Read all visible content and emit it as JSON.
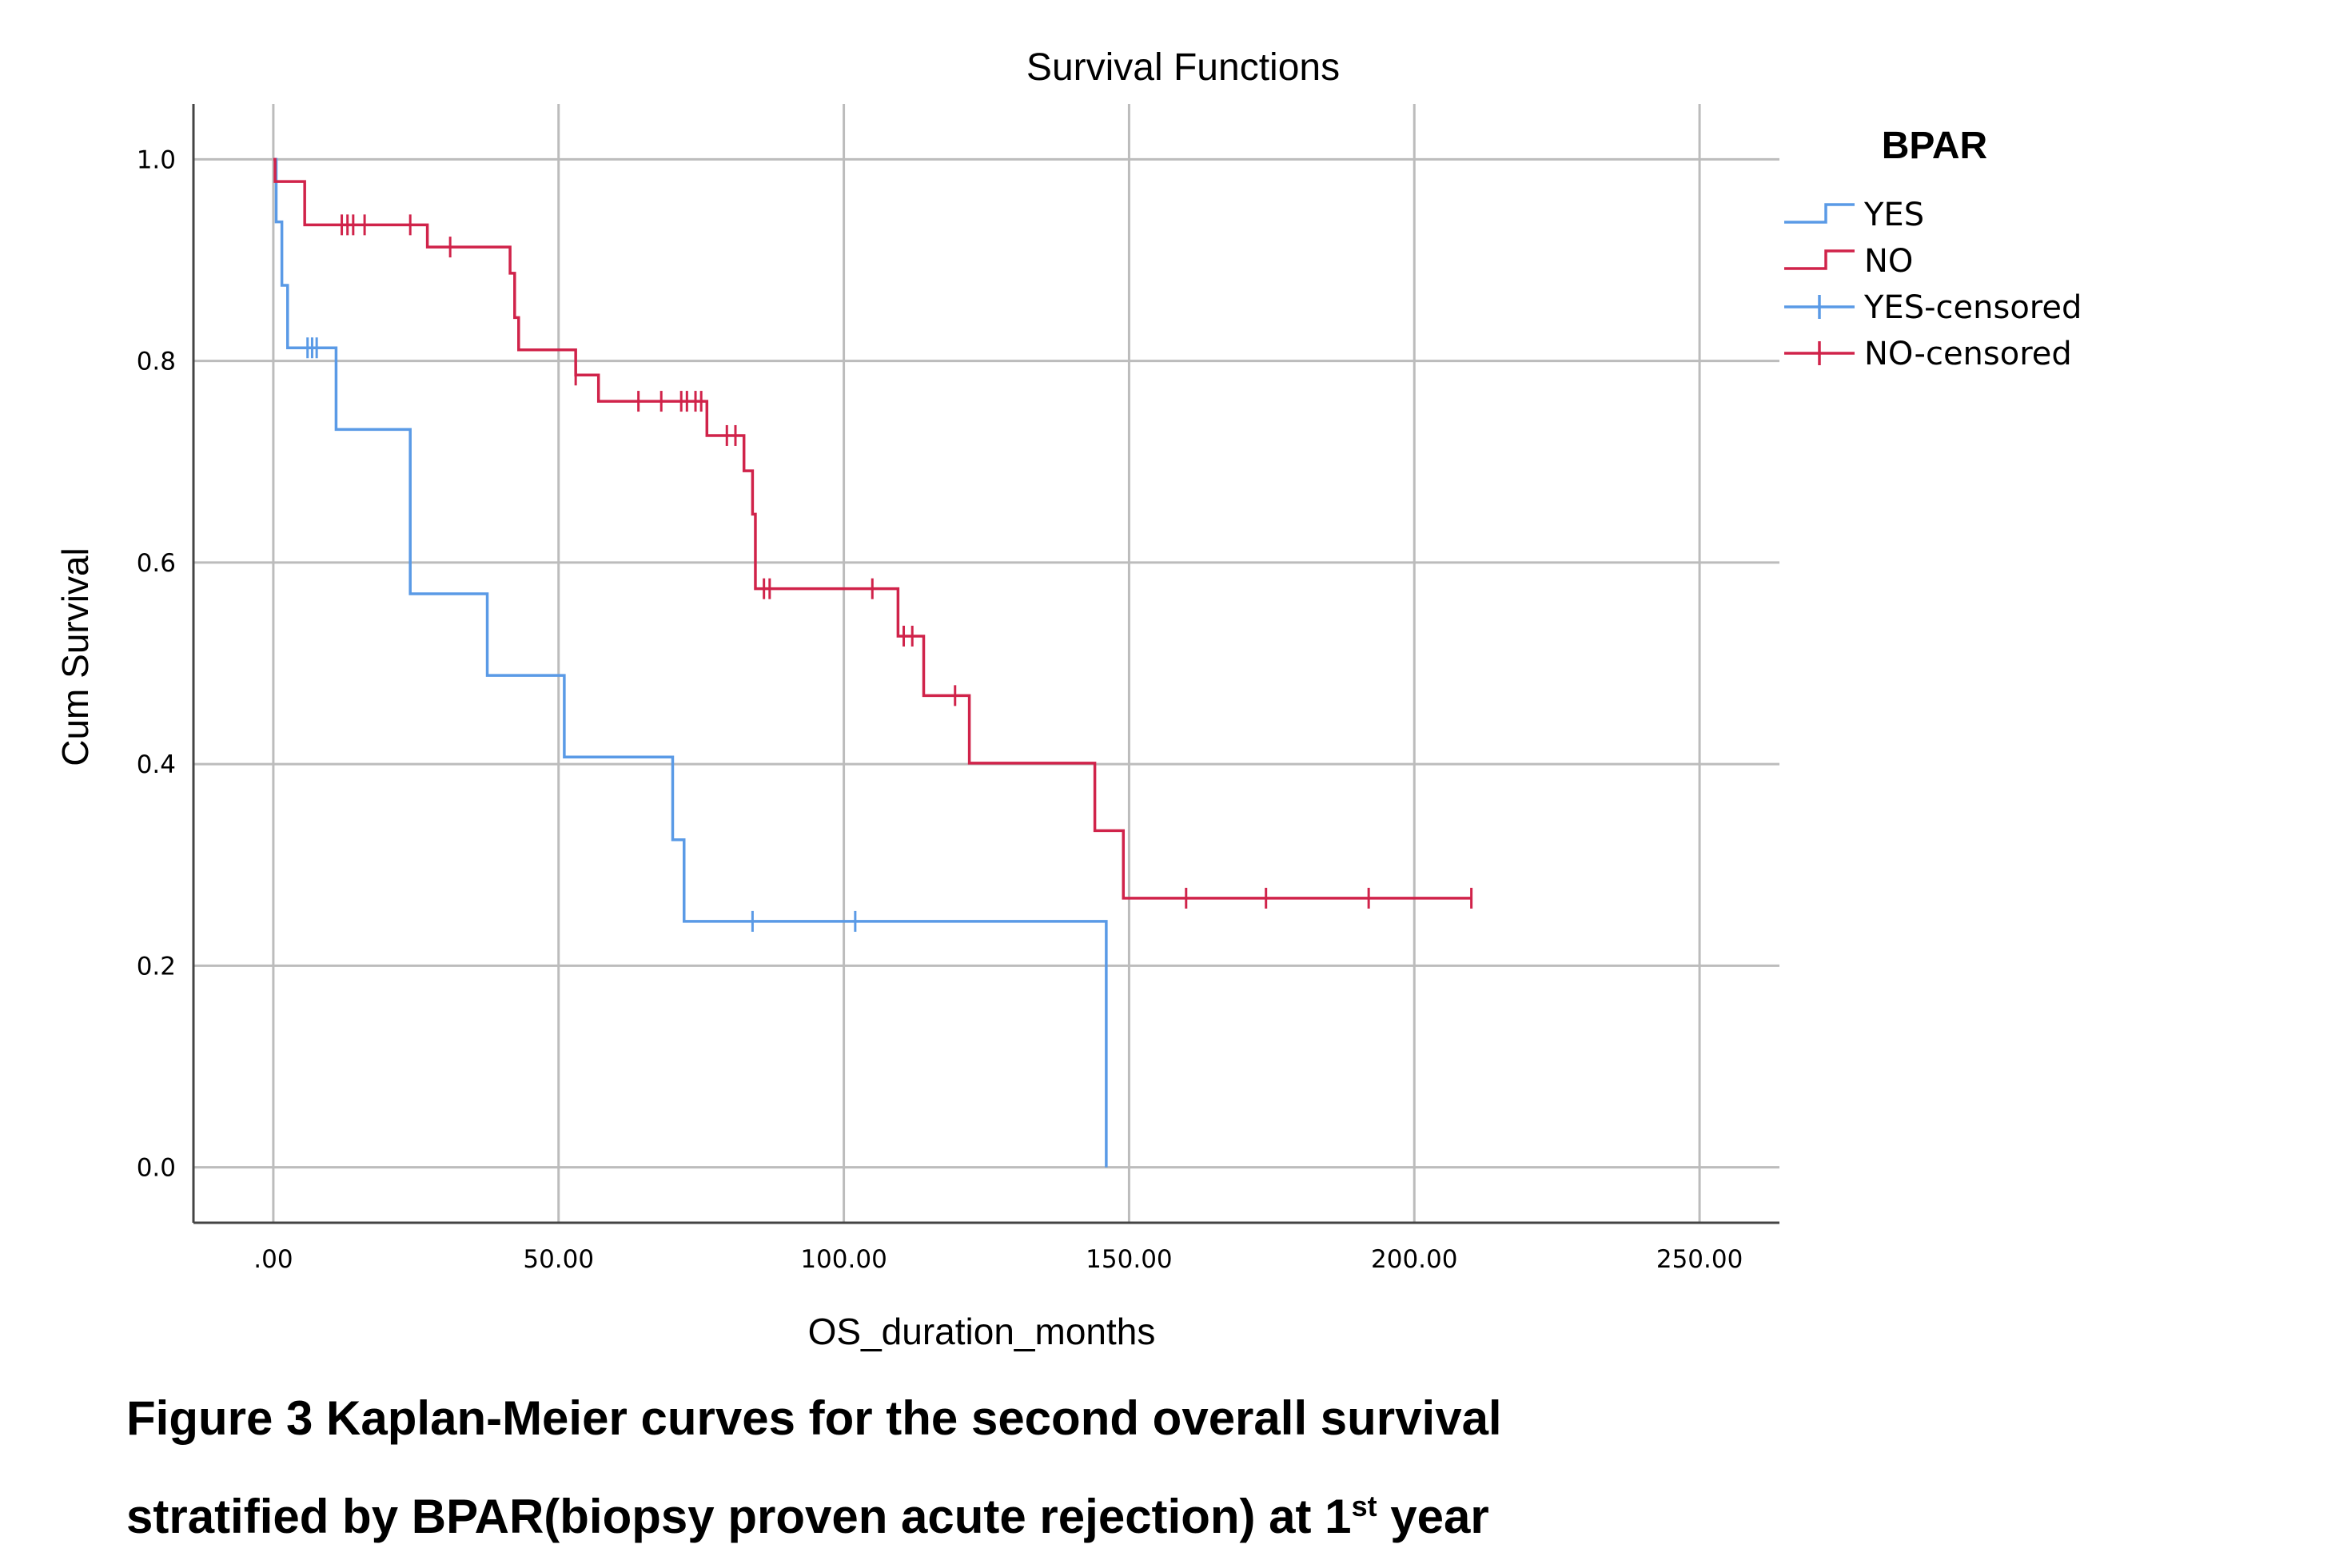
{
  "chart_data": {
    "type": "line",
    "subtype": "kaplan-meier-step",
    "title": "Survival Functions",
    "xlabel": "OS_duration_months",
    "ylabel": "Cum Survival",
    "xlim": [
      -14,
      264
    ],
    "ylim": [
      -0.055,
      1.055
    ],
    "xticks": [
      0,
      50,
      100,
      150,
      200,
      250
    ],
    "xtick_labels": [
      ".00",
      "50.00",
      "100.00",
      "150.00",
      "200.00",
      "250.00"
    ],
    "yticks": [
      0.0,
      0.2,
      0.4,
      0.6,
      0.8,
      1.0
    ],
    "ytick_labels": [
      "0.0",
      "0.2",
      "0.4",
      "0.6",
      "0.8",
      "1.0"
    ],
    "grid": true,
    "legend_title": "BPAR",
    "legend_position": "right",
    "legend_entries": [
      "YES",
      "NO",
      "YES-censored",
      "NO-censored"
    ],
    "series": [
      {
        "name": "YES",
        "color": "#5a9ae6",
        "steps": [
          [
            0,
            1.0
          ],
          [
            0.5,
            0.938
          ],
          [
            1.5,
            0.875
          ],
          [
            2.5,
            0.813
          ],
          [
            11,
            0.732
          ],
          [
            24,
            0.569
          ],
          [
            37.5,
            0.488
          ],
          [
            51,
            0.407
          ],
          [
            70,
            0.325
          ],
          [
            72,
            0.244
          ],
          [
            146,
            0.0
          ]
        ],
        "end_x": 146,
        "censored": [
          [
            6,
            0.813
          ],
          [
            6.8,
            0.813
          ],
          [
            7.6,
            0.813
          ],
          [
            84,
            0.244
          ],
          [
            102,
            0.244
          ]
        ]
      },
      {
        "name": "NO",
        "color": "#d0234a",
        "steps": [
          [
            0,
            1.0
          ],
          [
            0.3,
            0.978
          ],
          [
            5.5,
            0.935
          ],
          [
            27,
            0.913
          ],
          [
            41.5,
            0.887
          ],
          [
            42.3,
            0.843
          ],
          [
            43,
            0.811
          ],
          [
            53,
            0.786
          ],
          [
            57,
            0.76
          ],
          [
            76,
            0.726
          ],
          [
            82.5,
            0.691
          ],
          [
            84,
            0.648
          ],
          [
            84.5,
            0.574
          ],
          [
            109.5,
            0.527
          ],
          [
            114,
            0.468
          ],
          [
            122,
            0.401
          ],
          [
            144,
            0.334
          ],
          [
            149,
            0.267
          ]
        ],
        "end_x": 210,
        "censored": [
          [
            12,
            0.935
          ],
          [
            13,
            0.935
          ],
          [
            14,
            0.935
          ],
          [
            16,
            0.935
          ],
          [
            24,
            0.935
          ],
          [
            31,
            0.913
          ],
          [
            53,
            0.786
          ],
          [
            64,
            0.76
          ],
          [
            68,
            0.76
          ],
          [
            71.5,
            0.76
          ],
          [
            72.5,
            0.76
          ],
          [
            74,
            0.76
          ],
          [
            75,
            0.76
          ],
          [
            79.5,
            0.726
          ],
          [
            81,
            0.726
          ],
          [
            86,
            0.574
          ],
          [
            87,
            0.574
          ],
          [
            105,
            0.574
          ],
          [
            110.5,
            0.527
          ],
          [
            112,
            0.527
          ],
          [
            119.5,
            0.468
          ],
          [
            160,
            0.267
          ],
          [
            174,
            0.267
          ],
          [
            192,
            0.267
          ],
          [
            210,
            0.267
          ]
        ]
      }
    ]
  },
  "caption": {
    "line1": "Figure 3 Kaplan-Meier curves for the second overall survival",
    "line2_main": "stratified by BPAR(biopsy proven acute rejection) at 1",
    "line2_sup": "st",
    "line2_end": " year"
  }
}
